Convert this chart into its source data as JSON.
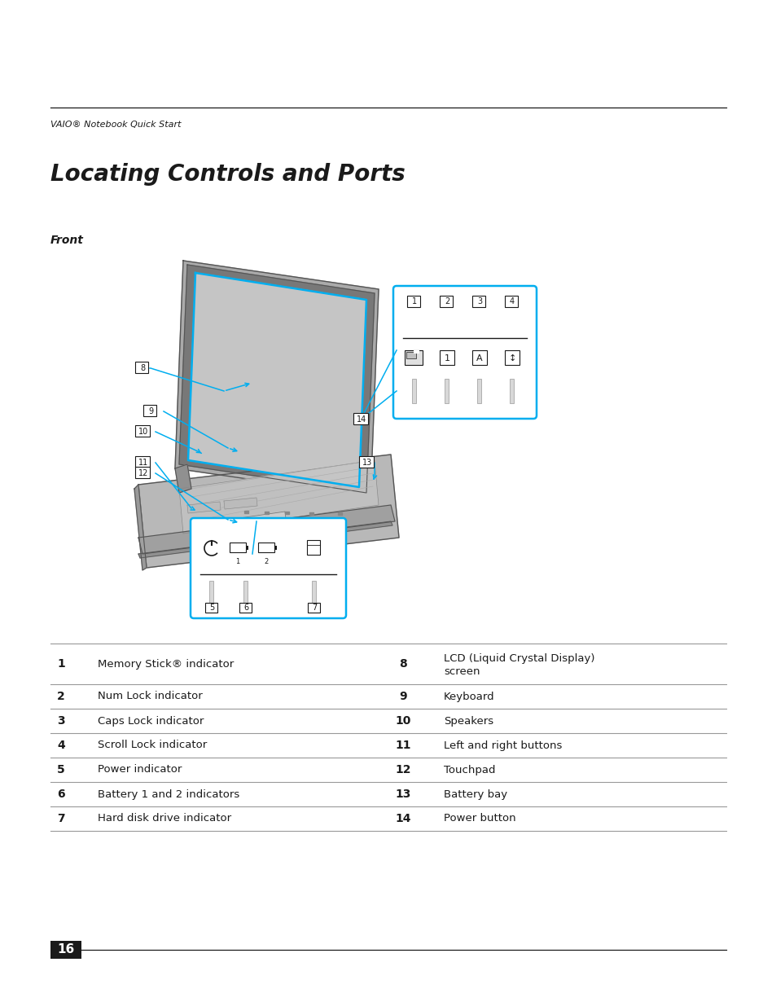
{
  "page_bg": "#ffffff",
  "header_text": "VAIO® Notebook Quick Start",
  "title": "Locating Controls and Ports",
  "front_label": "Front",
  "table_entries_left": [
    [
      "1",
      "Memory Stick® indicator"
    ],
    [
      "2",
      "Num Lock indicator"
    ],
    [
      "3",
      "Caps Lock indicator"
    ],
    [
      "4",
      "Scroll Lock indicator"
    ],
    [
      "5",
      "Power indicator"
    ],
    [
      "6",
      "Battery 1 and 2 indicators"
    ],
    [
      "7",
      "Hard disk drive indicator"
    ]
  ],
  "table_entries_right": [
    [
      "8",
      "LCD (Liquid Crystal Display)\nscreen"
    ],
    [
      "9",
      "Keyboard"
    ],
    [
      "10",
      "Speakers"
    ],
    [
      "11",
      "Left and right buttons"
    ],
    [
      "12",
      "Touchpad"
    ],
    [
      "13",
      "Battery bay"
    ],
    [
      "14",
      "Power button"
    ]
  ],
  "page_number": "16",
  "cyan": "#00AEEF",
  "dark": "#1a1a1a",
  "mid_gray": "#999999",
  "light_gray": "#bbbbbb",
  "laptop_gray": "#c8c8c8",
  "laptop_dark": "#888888",
  "laptop_border": "#555555"
}
